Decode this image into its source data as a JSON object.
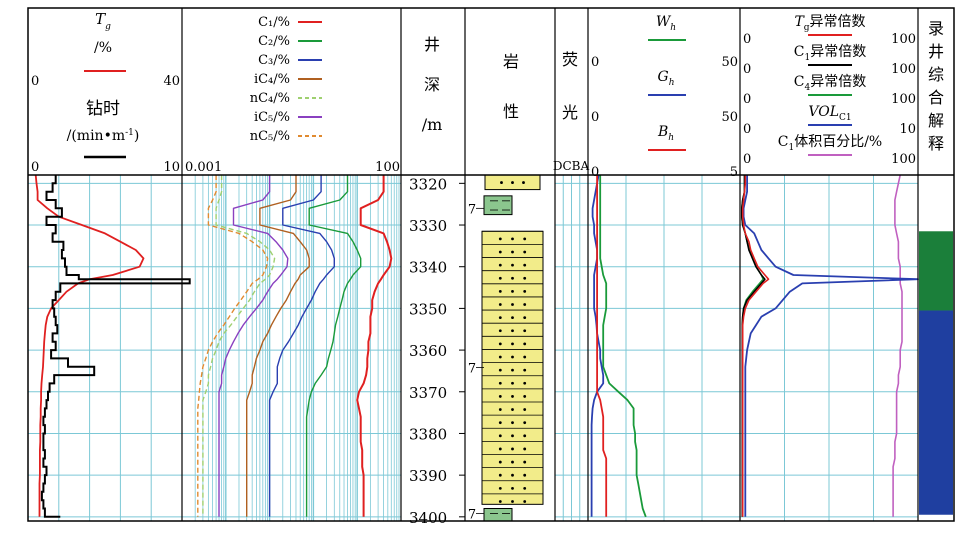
{
  "track1": {
    "tg_title": "T",
    "tg_sub": "g",
    "tg_unit": "/%",
    "tg_min": "0",
    "tg_max": "40",
    "zs_title": "钻时",
    "zs_unit_a": "/(min•m",
    "zs_unit_sup": "-1",
    "zs_unit_b": ")",
    "zs_min": "0",
    "zs_max": "10",
    "colors": {
      "tg": "#e02020",
      "zs": "#000000"
    }
  },
  "track2": {
    "scale_min": "0.001",
    "scale_max": "100",
    "log_scale": true,
    "legend": [
      {
        "label": "C₁/%",
        "color": "#e02020",
        "dash": false
      },
      {
        "label": "C₂/%",
        "color": "#1a9a3a",
        "dash": false
      },
      {
        "label": "C₃/%",
        "color": "#2a3fb0",
        "dash": false
      },
      {
        "label": "iC₄/%",
        "color": "#b06020",
        "dash": false
      },
      {
        "label": "nC₄/%",
        "color": "#9fd070",
        "dash": true
      },
      {
        "label": "iC₅/%",
        "color": "#8a40c0",
        "dash": false
      },
      {
        "label": "nC₅/%",
        "color": "#e08a30",
        "dash": true
      }
    ]
  },
  "depth_track": {
    "title_lines": [
      "井",
      "深",
      "/m"
    ],
    "ticks": [
      "3320",
      "3330",
      "3340",
      "3350",
      "3360",
      "3370",
      "3380",
      "3390",
      "3400"
    ]
  },
  "lith_track": {
    "title_lines": [
      "岩",
      "性"
    ],
    "markers": [
      "7",
      "7",
      "7"
    ]
  },
  "fluor_track": {
    "title_lines": [
      "荧",
      "光"
    ],
    "scale": "DCBA"
  },
  "track5": {
    "rows": [
      {
        "label": "W",
        "sub": "h",
        "min": "0",
        "max": "50",
        "color": "#1a9a3a"
      },
      {
        "label": "G",
        "sub": "h",
        "min": "0",
        "max": "50",
        "color": "#2a3fb0"
      },
      {
        "label": "B",
        "sub": "h",
        "min": "0",
        "max": "5",
        "color": "#e02020"
      }
    ]
  },
  "track6": {
    "rows": [
      {
        "label": "T",
        "sub": "g",
        "suffix": "异常倍数",
        "min": "0",
        "max": "100",
        "color": "#e02020"
      },
      {
        "label": "C",
        "sub": "1",
        "suffix": "异常倍数",
        "min": "0",
        "max": "100",
        "color": "#000000"
      },
      {
        "label": "C",
        "sub": "4",
        "suffix": "异常倍数",
        "min": "0",
        "max": "100",
        "color": "#1a9a3a"
      },
      {
        "label": "VOL",
        "sub": "C1",
        "suffix": "",
        "min": "0",
        "max": "10",
        "color": "#2a3fb0"
      },
      {
        "label": "C",
        "sub": "1",
        "suffix": "体积百分比/%",
        "min": "0",
        "max": "100",
        "color": "#c060c0"
      }
    ]
  },
  "interp_track": {
    "title_chars": [
      "录",
      "井",
      "综",
      "合",
      "解",
      "释"
    ],
    "zones": [
      {
        "top": 3331.5,
        "bottom": 3350.5,
        "color": "#1b7f3a"
      },
      {
        "top": 3350.5,
        "bottom": 3399.5,
        "color": "#1f3fa0"
      }
    ]
  },
  "chart_data": {
    "type": "line",
    "depth_range": [
      3318,
      3401
    ],
    "depths": [
      3318,
      3320,
      3322,
      3324,
      3326,
      3328,
      3330,
      3332,
      3334,
      3336,
      3338,
      3340,
      3342,
      3343,
      3344,
      3346,
      3348,
      3350,
      3352,
      3354,
      3356,
      3358,
      3360,
      3362,
      3364,
      3366,
      3368,
      3370,
      3372,
      3374,
      3376,
      3378,
      3380,
      3382,
      3384,
      3386,
      3388,
      3390,
      3392,
      3394,
      3396,
      3398,
      3400
    ],
    "tg": [
      2,
      2.2,
      2.5,
      2.5,
      5,
      8,
      14,
      20,
      24,
      28,
      30,
      29,
      22,
      16,
      13,
      10,
      8,
      6,
      5,
      4.6,
      4.4,
      4.2,
      4.1,
      4,
      3.9,
      3.7,
      3.5,
      3.4,
      3.4,
      3.3,
      3.3,
      3.2,
      3.2,
      3.2,
      3.1,
      3.1,
      3.1,
      3.1,
      3,
      3,
      3,
      3,
      3
    ],
    "drill_time": [
      1.8,
      1.6,
      1.2,
      1.8,
      2.2,
      1.2,
      1.8,
      1.6,
      2.3,
      2.2,
      2.4,
      2.5,
      3.3,
      10.5,
      2.1,
      1.8,
      1.6,
      1.7,
      1.8,
      1.9,
      1.6,
      1.8,
      1.5,
      2.6,
      4.3,
      1.7,
      1.4,
      1.3,
      1.2,
      1.1,
      1.0,
      1.1,
      1.0,
      1.0,
      1.1,
      1.0,
      1.2,
      1.1,
      1.0,
      0.9,
      1.0,
      1.1,
      2.1
    ],
    "c1": [
      40,
      40,
      40,
      30,
      12,
      12,
      12,
      40,
      48,
      55,
      60,
      55,
      40,
      35,
      30,
      25,
      22,
      22,
      20,
      20,
      20,
      18,
      18,
      17,
      17,
      16,
      14,
      11,
      10,
      11,
      12,
      12,
      12,
      12,
      13,
      13,
      13,
      14,
      14,
      14,
      14,
      14,
      14
    ],
    "c2": [
      6,
      6,
      6,
      4,
      0.8,
      0.8,
      0.8,
      6,
      8,
      10,
      12,
      12,
      8,
      7,
      6,
      5,
      4.5,
      4,
      3.6,
      3.2,
      3,
      2.8,
      2.5,
      2.2,
      2.0,
      1.5,
      1.1,
      0.9,
      0.8,
      0.75,
      0.7,
      0.7,
      0.7,
      0.7,
      0.7,
      0.7,
      0.7,
      0.7,
      0.7,
      0.7,
      0.7,
      0.7,
      0.7
    ],
    "c3": [
      1.5,
      1.5,
      1.5,
      1,
      0.2,
      0.2,
      0.2,
      1.4,
      2,
      2.6,
      3,
      3,
      2,
      1.7,
      1.4,
      1.1,
      0.9,
      0.7,
      0.55,
      0.45,
      0.35,
      0.27,
      0.2,
      0.17,
      0.15,
      0.15,
      0.15,
      0.12,
      0.1,
      0.1,
      0.1,
      0.1,
      0.1,
      0.1,
      0.1,
      0.1,
      0.1,
      0.1,
      0.1,
      0.1,
      0.1,
      0.1,
      0.1
    ],
    "ic4": [
      0.4,
      0.4,
      0.4,
      0.3,
      0.06,
      0.06,
      0.06,
      0.35,
      0.5,
      0.7,
      0.8,
      0.8,
      0.5,
      0.45,
      0.38,
      0.3,
      0.24,
      0.18,
      0.14,
      0.11,
      0.09,
      0.07,
      0.06,
      0.05,
      0.045,
      0.04,
      0.04,
      0.035,
      0.03,
      0.03,
      0.03,
      0.03,
      0.03,
      0.03,
      0.03,
      0.03,
      0.03,
      0.03,
      0.03,
      0.03,
      0.03,
      0.03,
      0.03
    ],
    "nc4": [
      0.008,
      0.008,
      0.008,
      0.007,
      0.006,
      0.006,
      0.006,
      0.03,
      0.06,
      0.1,
      0.13,
      0.12,
      0.1,
      0.08,
      0.06,
      0.045,
      0.035,
      0.025,
      0.018,
      0.013,
      0.009,
      0.007,
      0.006,
      0.005,
      0.0045,
      0.004,
      0.004,
      0.0035,
      0.003,
      0.003,
      0.003,
      0.003,
      0.003,
      0.003,
      0.003,
      0.003,
      0.003,
      0.003,
      0.003,
      0.003,
      0.003,
      0.003,
      0.003
    ],
    "ic5": [
      0.1,
      0.1,
      0.1,
      0.07,
      0.015,
      0.015,
      0.015,
      0.09,
      0.14,
      0.2,
      0.26,
      0.25,
      0.18,
      0.15,
      0.12,
      0.09,
      0.07,
      0.05,
      0.035,
      0.025,
      0.019,
      0.015,
      0.012,
      0.01,
      0.009,
      0.008,
      0.008,
      0.007,
      0.007,
      0.007,
      0.007,
      0.007,
      0.007,
      0.007,
      0.007,
      0.007,
      0.007,
      0.007,
      0.007,
      0.007,
      0.007,
      0.007,
      0.007
    ],
    "nc5": [
      0.006,
      0.006,
      0.006,
      0.005,
      0.004,
      0.004,
      0.004,
      0.02,
      0.04,
      0.07,
      0.09,
      0.085,
      0.07,
      0.055,
      0.04,
      0.03,
      0.022,
      0.016,
      0.012,
      0.009,
      0.0065,
      0.005,
      0.004,
      0.0035,
      0.003,
      0.0028,
      0.0026,
      0.0025,
      0.0024,
      0.0023,
      0.0023,
      0.0023,
      0.0023,
      0.0023,
      0.0023,
      0.0023,
      0.0023,
      0.0023,
      0.0023,
      0.0023,
      0.0023,
      0.0023,
      0.0023
    ],
    "wh": [
      4,
      4,
      4,
      4,
      4,
      4,
      4,
      4,
      4,
      4,
      4,
      4.5,
      5,
      5.5,
      6,
      6,
      6,
      6,
      5.5,
      5,
      5,
      5,
      5,
      5,
      5,
      6,
      7,
      10,
      13,
      15,
      15,
      15,
      15.5,
      15.5,
      16,
      16,
      16,
      16,
      16.5,
      17,
      17.5,
      18,
      19
    ],
    "gh": [
      3.5,
      3,
      2.5,
      2,
      1.5,
      1.5,
      2,
      2,
      2.5,
      3,
      3,
      2.5,
      2,
      2,
      2,
      2,
      2,
      2,
      2.5,
      2.8,
      3,
      3.5,
      4,
      4,
      4.5,
      5,
      5,
      3,
      2,
      1.5,
      1.3,
      1.2,
      1.2,
      1.2,
      1.2,
      1.2,
      1.2,
      1.2,
      1.2,
      1.2,
      1.2,
      1.2,
      1.2
    ],
    "bh": [
      0.3,
      0.3,
      0.3,
      0.3,
      0.3,
      0.3,
      0.3,
      0.3,
      0.3,
      0.3,
      0.3,
      0.3,
      0.3,
      0.3,
      0.3,
      0.3,
      0.3,
      0.3,
      0.3,
      0.3,
      0.3,
      0.3,
      0.3,
      0.3,
      0.3,
      0.3,
      0.3,
      0.3,
      0.4,
      0.45,
      0.5,
      0.5,
      0.5,
      0.5,
      0.5,
      0.6,
      0.6,
      0.6,
      0.6,
      0.6,
      0.6,
      0.6,
      0.6
    ],
    "tg_mult": [
      3,
      3,
      2.5,
      2,
      1.5,
      1.5,
      2,
      3,
      5,
      6,
      8,
      10,
      14,
      16,
      13,
      9,
      5,
      3,
      2,
      1.5,
      1.5,
      1.5,
      1.5,
      1.5,
      1.5,
      1.5,
      1.5,
      1.5,
      1.5,
      1.5,
      1.5,
      1.5,
      1.5,
      1.5,
      1.5,
      1.5,
      1.5,
      1.5,
      1.5,
      1.5,
      1.5,
      1.5,
      1.5
    ],
    "c1_mult": [
      2.5,
      2.5,
      2.5,
      1.5,
      1,
      1,
      1.5,
      3,
      4,
      5,
      7,
      9,
      12,
      14,
      12,
      8,
      4,
      2,
      1.5,
      1.3,
      1.3,
      1.3,
      1.3,
      1.3,
      1.3,
      1.3,
      1.3,
      1.3,
      1.3,
      1.3,
      1.3,
      1.3,
      1.3,
      1.3,
      1.3,
      1.3,
      1.3,
      1.3,
      1.3,
      1.3,
      1.3,
      1.3,
      1.3
    ],
    "c4_mult": [
      2.5,
      2.5,
      2.5,
      1.5,
      1,
      1,
      1.5,
      3,
      4,
      5.5,
      7,
      9,
      12,
      13,
      11,
      7,
      3.5,
      2,
      1.5,
      1.3,
      1.3,
      1.3,
      1.3,
      1.3,
      1.3,
      1.3,
      1.3,
      1.3,
      1.3,
      1.3,
      1.3,
      1.3,
      1.3,
      1.3,
      1.3,
      1.3,
      1.3,
      1.3,
      1.3,
      1.3,
      1.3,
      1.3,
      1.3
    ],
    "vol_c1": [
      0.4,
      0.4,
      0.4,
      0.3,
      0.2,
      0.2,
      0.3,
      0.8,
      1,
      1.2,
      1.6,
      2,
      3,
      10,
      3.5,
      2.8,
      2.4,
      2,
      1.2,
      0.9,
      0.6,
      0.5,
      0.4,
      0.35,
      0.3,
      0.3,
      0.3,
      0.3,
      0.3,
      0.3,
      0.3,
      0.3,
      0.3,
      0.3,
      0.3,
      0.3,
      0.3,
      0.3,
      0.3,
      0.3,
      0.3,
      0.3,
      0.3
    ],
    "c1_pct": [
      90,
      89,
      88,
      87,
      87,
      87,
      87,
      88,
      89,
      89,
      89,
      90,
      90,
      90,
      90,
      91,
      91,
      91,
      91,
      91,
      91,
      91,
      90,
      90,
      90,
      89,
      89,
      88,
      88,
      88,
      88,
      88,
      88,
      87,
      87,
      87,
      86,
      86,
      86,
      86,
      86,
      86,
      86
    ]
  }
}
